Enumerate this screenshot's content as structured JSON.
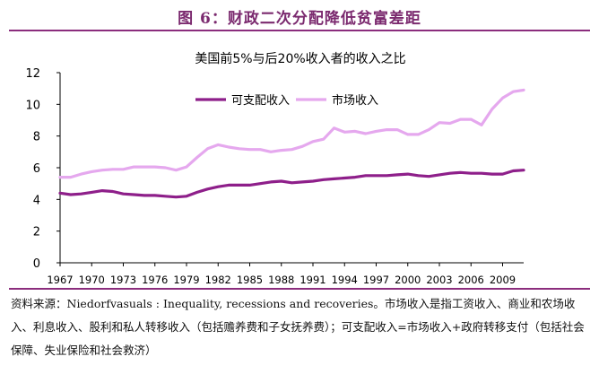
{
  "figure": {
    "title": "图 6：财政二次分配降低贫富差距",
    "source": "资料来源：Niedorfvasuals : Inequality, recessions and recoveries。市场收入是指工资收入、商业和农场收入、利息收入、股利和私人转移收入（包括赡养费和子女抚养费）；可支配收入=市场收入+政府转移支付（包括社会保障、失业保险和社会救济）"
  },
  "colors": {
    "disposable": "#8e1f8a",
    "market": "#e5a8ee",
    "rule": "#8b2d7d",
    "title": "#7b2a6f"
  },
  "chart_data": {
    "type": "line",
    "title": "美国前5%与后20%收入者的收入之比",
    "xlabel": "",
    "ylabel": "",
    "ylim": [
      0,
      12
    ],
    "yticks": [
      0,
      2,
      4,
      6,
      8,
      10,
      12
    ],
    "xticks": [
      1967,
      1970,
      1973,
      1976,
      1979,
      1982,
      1985,
      1988,
      1991,
      1994,
      1997,
      2000,
      2003,
      2006,
      2009
    ],
    "xlim": [
      1967,
      2011
    ],
    "legend_position": "top",
    "grid": false,
    "x": [
      1967,
      1968,
      1969,
      1970,
      1971,
      1972,
      1973,
      1974,
      1975,
      1976,
      1977,
      1978,
      1979,
      1980,
      1981,
      1982,
      1983,
      1984,
      1985,
      1986,
      1987,
      1988,
      1989,
      1990,
      1991,
      1992,
      1993,
      1994,
      1995,
      1996,
      1997,
      1998,
      1999,
      2000,
      2001,
      2002,
      2003,
      2004,
      2005,
      2006,
      2007,
      2008,
      2009,
      2010,
      2011
    ],
    "series": [
      {
        "name": "可支配收入",
        "values": [
          4.4,
          4.3,
          4.35,
          4.45,
          4.55,
          4.5,
          4.35,
          4.3,
          4.25,
          4.25,
          4.2,
          4.15,
          4.2,
          4.45,
          4.65,
          4.8,
          4.9,
          4.9,
          4.9,
          5.0,
          5.1,
          5.15,
          5.05,
          5.1,
          5.15,
          5.25,
          5.3,
          5.35,
          5.4,
          5.5,
          5.5,
          5.5,
          5.55,
          5.6,
          5.5,
          5.45,
          5.55,
          5.65,
          5.7,
          5.65,
          5.65,
          5.6,
          5.6,
          5.8,
          5.85
        ]
      },
      {
        "name": "市场收入",
        "values": [
          5.4,
          5.4,
          5.6,
          5.75,
          5.85,
          5.9,
          5.9,
          6.05,
          6.05,
          6.05,
          6.0,
          5.85,
          6.05,
          6.65,
          7.2,
          7.45,
          7.3,
          7.2,
          7.15,
          7.15,
          7.0,
          7.1,
          7.15,
          7.35,
          7.65,
          7.8,
          8.5,
          8.25,
          8.3,
          8.15,
          8.3,
          8.4,
          8.4,
          8.1,
          8.1,
          8.4,
          8.85,
          8.8,
          9.05,
          9.05,
          8.7,
          9.7,
          10.4,
          10.8,
          10.9
        ]
      }
    ]
  }
}
